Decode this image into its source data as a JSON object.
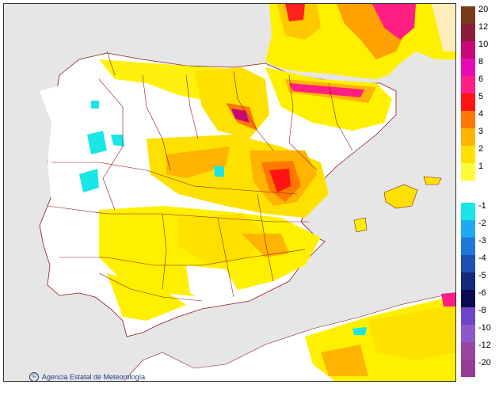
{
  "credit": {
    "text": "Agencia Estatal de Meteorología",
    "icon": "copyright-icon"
  },
  "legend": {
    "positive": [
      {
        "label": "20",
        "color": "#7a3b1a"
      },
      {
        "label": "12",
        "color": "#8c1c3c"
      },
      {
        "label": "10",
        "color": "#c80a78"
      },
      {
        "label": "8",
        "color": "#e60ab4"
      },
      {
        "label": "6",
        "color": "#ff1e82"
      },
      {
        "label": "5",
        "color": "#ff1414"
      },
      {
        "label": "4",
        "color": "#ff7800"
      },
      {
        "label": "3",
        "color": "#ffb400"
      },
      {
        "label": "2",
        "color": "#ffe100"
      },
      {
        "label": "1",
        "color": "#fffa3c"
      }
    ],
    "negative": [
      {
        "label": "-1",
        "color": "#19e6e6"
      },
      {
        "label": "-2",
        "color": "#1eaaf0"
      },
      {
        "label": "-3",
        "color": "#1e78dc"
      },
      {
        "label": "-4",
        "color": "#1e50b4"
      },
      {
        "label": "-5",
        "color": "#14287d"
      },
      {
        "label": "-6",
        "color": "#0a0a50"
      },
      {
        "label": "-8",
        "color": "#6e46c8"
      },
      {
        "label": "-10",
        "color": "#8c5ac8"
      },
      {
        "label": "-12",
        "color": "#9a46a0"
      },
      {
        "label": "-20",
        "color": "#963c96"
      }
    ]
  },
  "colors": {
    "sea": "#e6e6e6",
    "land": "#ffffff",
    "border": "#8b1a1a"
  }
}
